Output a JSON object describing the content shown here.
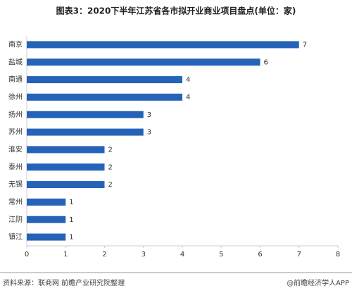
{
  "chart_data": {
    "type": "bar",
    "orientation": "horizontal",
    "title": "图表3：2020下半年江苏省各市拟开业商业项目盘点(单位：家)",
    "categories": [
      "南京",
      "盐城",
      "南通",
      "徐州",
      "扬州",
      "苏州",
      "淮安",
      "泰州",
      "无锡",
      "常州",
      "江阴",
      "镇江"
    ],
    "values": [
      7,
      6,
      4,
      4,
      3,
      3,
      2,
      2,
      2,
      1,
      1,
      1
    ],
    "color": "#2563b8",
    "xlim": [
      0,
      8
    ],
    "xticks": [
      0,
      1,
      2,
      3,
      4,
      5,
      6,
      7,
      8
    ],
    "source": "资料来源：联商网 前瞻产业研究院整理",
    "credit": "@前瞻经济学人APP"
  }
}
